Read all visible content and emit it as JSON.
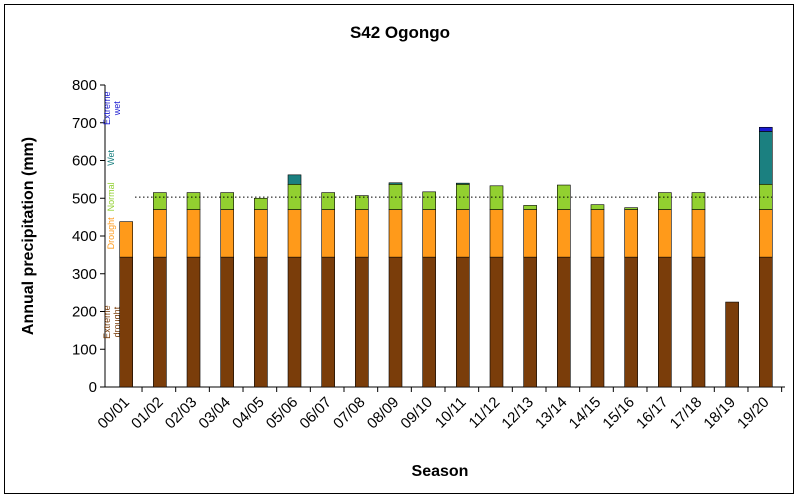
{
  "chart_data": {
    "type": "bar",
    "title": "S42 Ogongo",
    "xlabel": "Season",
    "ylabel": "Annual precipitation (mm)",
    "ylim": [
      0,
      800
    ],
    "yticks": [
      0,
      100,
      200,
      300,
      400,
      500,
      600,
      700,
      800
    ],
    "categories": [
      "00/01",
      "01/02",
      "02/03",
      "03/04",
      "04/05",
      "05/06",
      "06/07",
      "07/08",
      "08/09",
      "09/10",
      "10/11",
      "11/12",
      "12/13",
      "13/14",
      "14/15",
      "15/16",
      "16/17",
      "17/18",
      "18/19",
      "19/20"
    ],
    "totals": [
      438,
      515,
      515,
      515,
      500,
      562,
      515,
      507,
      541,
      517,
      540,
      533,
      481,
      535,
      483,
      475,
      515,
      515,
      225,
      688
    ],
    "thresholds": {
      "extreme_drought": 344,
      "drought": 470,
      "normal": 537,
      "wet": 677
    },
    "reference_line": 503,
    "bands": [
      {
        "name": "Extreme drought",
        "label": "Extreme drought",
        "color": "#7a3d0a"
      },
      {
        "name": "Drought",
        "label": "Drought",
        "color": "#ff9a1a"
      },
      {
        "name": "Normal",
        "label": "Normal",
        "color": "#92d030"
      },
      {
        "name": "Wet",
        "label": "Wet",
        "color": "#1b8080"
      },
      {
        "name": "Extreme wet",
        "label": "Extreme wet",
        "color": "#1a1ad0"
      }
    ],
    "grid": false,
    "legend": "inside-left-vertical"
  }
}
